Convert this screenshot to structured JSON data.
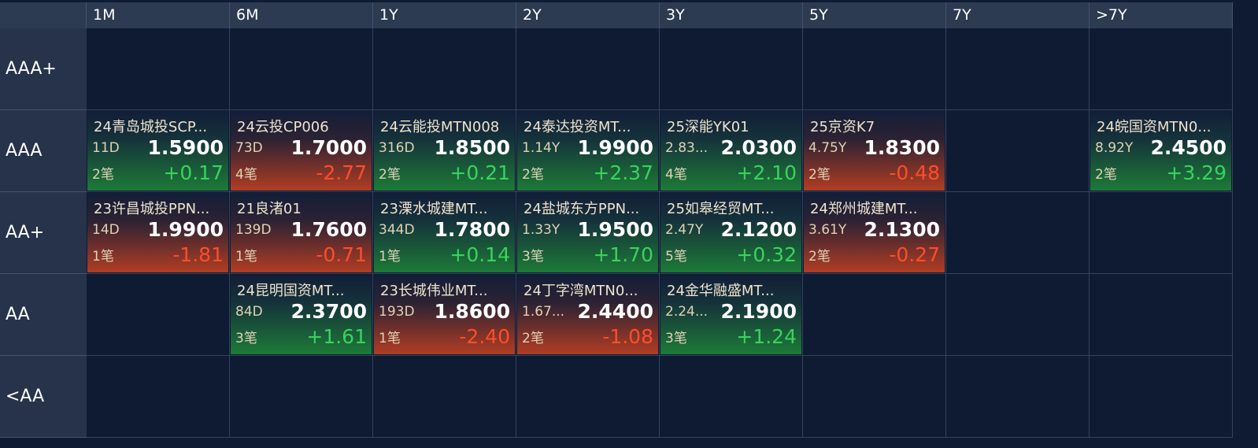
{
  "table": {
    "columns": [
      "1M",
      "6M",
      "1Y",
      "2Y",
      "3Y",
      "5Y",
      "7Y",
      ">7Y"
    ],
    "rows": [
      {
        "label": "AAA+",
        "cells": [
          null,
          null,
          null,
          null,
          null,
          null,
          null,
          null
        ]
      },
      {
        "label": "AAA",
        "cells": [
          {
            "name": "24青岛城投SCP...",
            "term": "11D",
            "yield": "1.5900",
            "count": "2笔",
            "change": "+0.17"
          },
          {
            "name": "24云投CP006",
            "term": "73D",
            "yield": "1.7000",
            "count": "4笔",
            "change": "-2.77"
          },
          {
            "name": "24云能投MTN008",
            "term": "316D",
            "yield": "1.8500",
            "count": "2笔",
            "change": "+0.21"
          },
          {
            "name": "24泰达投资MT...",
            "term": "1.14Y",
            "yield": "1.9900",
            "count": "2笔",
            "change": "+2.37"
          },
          {
            "name": "25深能YK01",
            "term": "2.83...",
            "yield": "2.0300",
            "count": "4笔",
            "change": "+2.10"
          },
          {
            "name": "25京资K7",
            "term": "4.75Y",
            "yield": "1.8300",
            "count": "2笔",
            "change": "-0.48"
          },
          null,
          {
            "name": "24皖国资MTN0...",
            "term": "8.92Y",
            "yield": "2.4500",
            "count": "2笔",
            "change": "+3.29"
          }
        ]
      },
      {
        "label": "AA+",
        "cells": [
          {
            "name": "23许昌城投PPN...",
            "term": "14D",
            "yield": "1.9900",
            "count": "1笔",
            "change": "-1.81"
          },
          {
            "name": "21良渚01",
            "term": "139D",
            "yield": "1.7600",
            "count": "1笔",
            "change": "-0.71"
          },
          {
            "name": "23溧水城建MT...",
            "term": "344D",
            "yield": "1.7800",
            "count": "1笔",
            "change": "+0.14"
          },
          {
            "name": "24盐城东方PPN...",
            "term": "1.33Y",
            "yield": "1.9500",
            "count": "3笔",
            "change": "+1.70"
          },
          {
            "name": "25如皋经贸MT...",
            "term": "2.47Y",
            "yield": "2.1200",
            "count": "5笔",
            "change": "+0.32"
          },
          {
            "name": "24郑州城建MT...",
            "term": "3.61Y",
            "yield": "2.1300",
            "count": "2笔",
            "change": "-0.27"
          },
          null,
          null
        ]
      },
      {
        "label": "AA",
        "cells": [
          null,
          {
            "name": "24昆明国资MT...",
            "term": "84D",
            "yield": "2.3700",
            "count": "3笔",
            "change": "+1.61"
          },
          {
            "name": "23长城伟业MT...",
            "term": "193D",
            "yield": "1.8600",
            "count": "1笔",
            "change": "-2.40"
          },
          {
            "name": "24丁字湾MTN0...",
            "term": "1.67...",
            "yield": "2.4400",
            "count": "2笔",
            "change": "-1.08"
          },
          {
            "name": "24金华融盛MT...",
            "term": "2.24...",
            "yield": "2.1900",
            "count": "3笔",
            "change": "+1.24"
          },
          null,
          null,
          null
        ]
      },
      {
        "label": "<AA",
        "cells": [
          null,
          null,
          null,
          null,
          null,
          null,
          null,
          null
        ]
      }
    ]
  }
}
